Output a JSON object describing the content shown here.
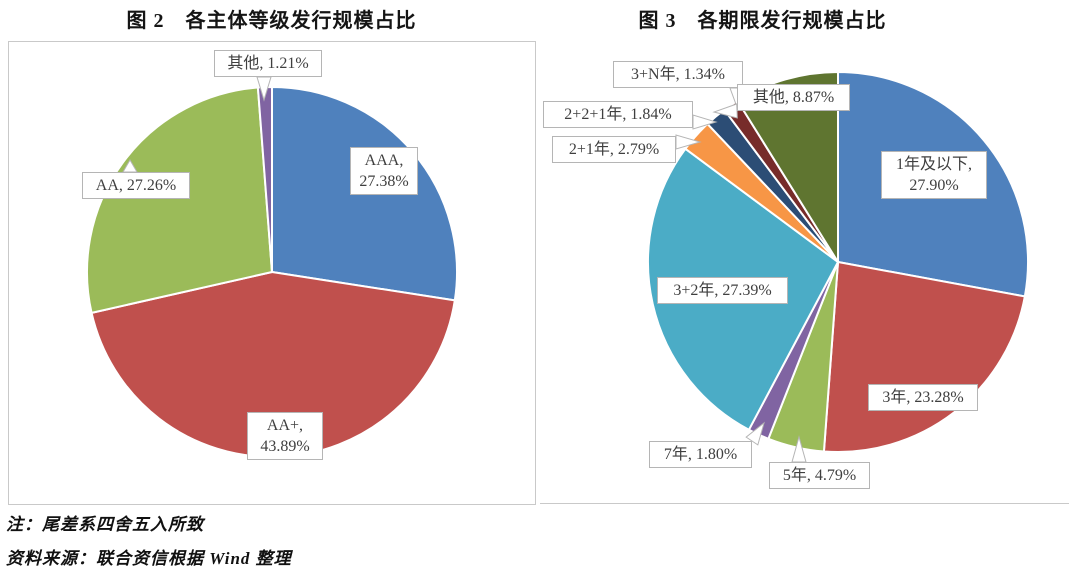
{
  "chart_data": [
    {
      "type": "pie",
      "title": "图 2　各主体等级发行规模占比",
      "categories": [
        "AAA",
        "AA+",
        "AA",
        "其他"
      ],
      "values": [
        27.38,
        43.89,
        27.26,
        1.21
      ],
      "unit": "%",
      "colors": [
        "#4F81BD",
        "#C0504D",
        "#9BBB59",
        "#8064A2"
      ],
      "labels": [
        "AAA, 27.38%",
        "AA+, 43.89%",
        "AA, 27.26%",
        "其他, 1.21%"
      ],
      "legend": "none",
      "label_style": "callout-boxes"
    },
    {
      "type": "pie",
      "title": "图 3　各期限发行规模占比",
      "categories": [
        "1年及以下",
        "3年",
        "5年",
        "7年",
        "3+2年",
        "2+1年",
        "2+2+1年",
        "3+N年",
        "其他"
      ],
      "values": [
        27.9,
        23.28,
        4.79,
        1.8,
        27.39,
        2.79,
        1.84,
        1.34,
        8.87
      ],
      "unit": "%",
      "colors": [
        "#4F81BD",
        "#C0504D",
        "#9BBB59",
        "#8064A2",
        "#4BACC6",
        "#F79646",
        "#2C4D75",
        "#772C2A",
        "#5F7530"
      ],
      "labels": [
        "1年及以下, 27.90%",
        "3年, 23.28%",
        "5年, 4.79%",
        "7年, 1.80%",
        "3+2年, 27.39%",
        "2+1年, 2.79%",
        "2+2+1年, 1.84%",
        "3+N年, 1.34%",
        "其他, 8.87%"
      ],
      "legend": "none",
      "label_style": "callout-boxes"
    }
  ],
  "footer": {
    "note": "注：尾差系四舍五入所致",
    "source": "资料来源：联合资信根据 Wind 整理"
  },
  "style": {
    "callout_border": "#b5b5b5",
    "callout_text": "#3f3f3f",
    "panel_border": "#c9c9c9",
    "slice_gap_color": "#ffffff"
  }
}
